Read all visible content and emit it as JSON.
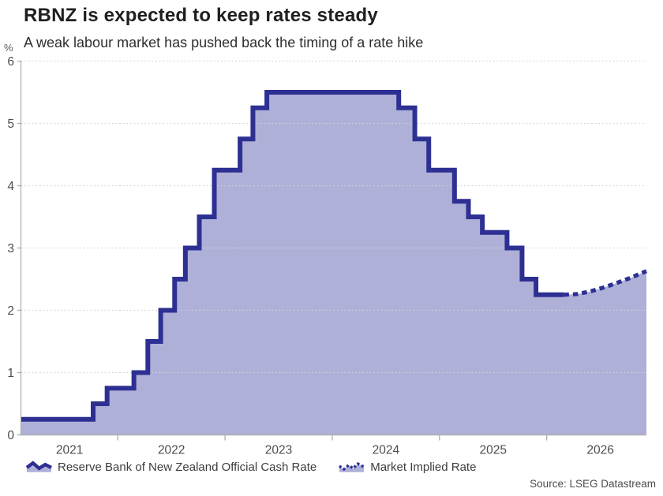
{
  "header": {
    "title": "RBNZ is expected to keep rates steady",
    "subtitle": "A weak labour market has pushed back the timing of a rate hike"
  },
  "colors": {
    "line": "#2d3092",
    "fill": "#aeb0d8",
    "grid": "#d2d2d6",
    "axis": "#b0b0b0",
    "tick_label": "#4d4d4d"
  },
  "chart_data": {
    "type": "area",
    "subtype": "step-line-with-forecast",
    "title": "RBNZ is expected to keep rates steady",
    "subtitle": "A weak labour market has pushed back the timing of a rate hike",
    "ylabel": "%",
    "xlabel": "",
    "x_domain": [
      2021.1,
      2026.93
    ],
    "ylim": [
      0,
      6
    ],
    "y_ticks": [
      0,
      1,
      2,
      3,
      4,
      5,
      6
    ],
    "x_tick_years": [
      2022,
      2023,
      2024,
      2025,
      2026
    ],
    "x_year_labels": [
      {
        "label": "2021",
        "x": 2021.55
      },
      {
        "label": "2022",
        "x": 2022.5
      },
      {
        "label": "2023",
        "x": 2023.5
      },
      {
        "label": "2024",
        "x": 2024.5
      },
      {
        "label": "2025",
        "x": 2025.5
      },
      {
        "label": "2026",
        "x": 2026.5
      }
    ],
    "grid": "horizontal-dotted",
    "legend_position": "bottom-left",
    "series": [
      {
        "name": "Reserve Bank of New Zealand Official Cash Rate",
        "style": "solid-step-area",
        "step_points": [
          [
            2021.1,
            0.25
          ],
          [
            2021.77,
            0.5
          ],
          [
            2021.9,
            0.75
          ],
          [
            2022.15,
            1.0
          ],
          [
            2022.28,
            1.5
          ],
          [
            2022.4,
            2.0
          ],
          [
            2022.53,
            2.5
          ],
          [
            2022.63,
            3.0
          ],
          [
            2022.76,
            3.5
          ],
          [
            2022.9,
            4.25
          ],
          [
            2023.14,
            4.75
          ],
          [
            2023.26,
            5.25
          ],
          [
            2023.39,
            5.5
          ],
          [
            2024.62,
            5.25
          ],
          [
            2024.77,
            4.75
          ],
          [
            2024.9,
            4.25
          ],
          [
            2025.14,
            3.75
          ],
          [
            2025.27,
            3.5
          ],
          [
            2025.4,
            3.25
          ],
          [
            2025.63,
            3.0
          ],
          [
            2025.77,
            2.5
          ],
          [
            2025.9,
            2.25
          ]
        ],
        "end_x": 2026.16
      },
      {
        "name": "Market Implied Rate",
        "style": "dotted-line",
        "points": [
          [
            2026.16,
            2.25
          ],
          [
            2026.28,
            2.26
          ],
          [
            2026.4,
            2.3
          ],
          [
            2026.52,
            2.36
          ],
          [
            2026.64,
            2.43
          ],
          [
            2026.78,
            2.52
          ],
          [
            2026.93,
            2.63
          ]
        ]
      }
    ]
  },
  "legend": {
    "items": [
      {
        "label": "Reserve Bank of New Zealand Official Cash Rate"
      },
      {
        "label": "Market Implied Rate"
      }
    ]
  },
  "source": "Source: LSEG Datastream"
}
